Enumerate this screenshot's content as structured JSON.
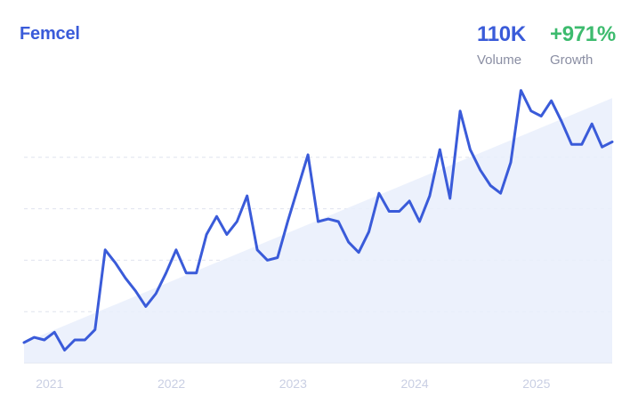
{
  "header": {
    "title": "Femcel",
    "volume_value": "110K",
    "volume_label": "Volume",
    "growth_value": "+971%",
    "growth_label": "Growth"
  },
  "colors": {
    "title": "#3a5bd9",
    "line": "#3a5bd9",
    "growth": "#3dbb6e",
    "area_fill": "#e9effb",
    "grid": "#dfe3ee",
    "axis_label": "#c9cfe3"
  },
  "chart_data": {
    "type": "line",
    "title": "",
    "xlabel": "",
    "ylabel": "",
    "x_ticks": [
      "2021",
      "2022",
      "2023",
      "2024",
      "2025"
    ],
    "x_range": [
      "2020-11",
      "2025-09"
    ],
    "ylim": [
      0,
      100
    ],
    "grid": "horizontal dashed",
    "legend": "none",
    "series": [
      {
        "values": [
          8,
          10,
          9,
          12,
          5,
          9,
          9,
          13,
          44,
          39,
          33,
          28,
          22,
          27,
          35,
          44,
          35,
          35,
          50,
          57,
          50,
          55,
          65,
          44,
          40,
          41,
          55,
          68,
          81,
          55,
          56,
          55,
          47,
          43,
          51,
          66,
          59,
          59,
          63,
          55,
          65,
          83,
          64,
          98,
          83,
          75,
          69,
          66,
          78,
          106,
          98,
          96,
          102,
          94,
          85,
          85,
          93,
          84,
          86
        ]
      }
    ],
    "trend": {
      "values": [
        8,
        103
      ]
    }
  }
}
